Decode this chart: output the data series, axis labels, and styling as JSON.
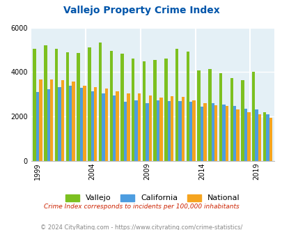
{
  "title": "Vallejo Property Crime Index",
  "subtitle": "Crime Index corresponds to incidents per 100,000 inhabitants",
  "footer": "© 2024 CityRating.com - https://www.cityrating.com/crime-statistics/",
  "years": [
    1999,
    2000,
    2001,
    2002,
    2003,
    2004,
    2005,
    2006,
    2007,
    2008,
    2009,
    2010,
    2011,
    2012,
    2013,
    2014,
    2015,
    2016,
    2017,
    2018,
    2019,
    2020
  ],
  "vallejo": [
    5060,
    5190,
    5060,
    4880,
    4850,
    5120,
    5320,
    4960,
    4840,
    4600,
    4480,
    4530,
    4600,
    5060,
    4910,
    4090,
    4130,
    3960,
    3720,
    3640,
    4020,
    2200
  ],
  "california": [
    3100,
    3240,
    3310,
    3380,
    3300,
    3140,
    3040,
    2950,
    2680,
    2720,
    2600,
    2730,
    2700,
    2700,
    2650,
    2440,
    2600,
    2530,
    2470,
    2340,
    2330,
    2100
  ],
  "national": [
    3660,
    3670,
    3640,
    3560,
    3400,
    3310,
    3270,
    3120,
    3030,
    3050,
    2960,
    2850,
    2900,
    2870,
    2740,
    2600,
    2510,
    2470,
    2320,
    2200,
    2100,
    1950
  ],
  "bar_colors": {
    "vallejo": "#7cc020",
    "california": "#4d9de0",
    "national": "#f5a41f"
  },
  "bg_color": "#e4f0f6",
  "ylim": [
    0,
    6000
  ],
  "yticks": [
    0,
    2000,
    4000,
    6000
  ],
  "grid_color": "#ffffff",
  "title_color": "#0055aa",
  "subtitle_color": "#cc2200",
  "footer_color": "#888888",
  "tick_years": [
    1999,
    2004,
    2009,
    2014,
    2019
  ],
  "section_dividers": [
    2004,
    2009,
    2014,
    2019
  ]
}
